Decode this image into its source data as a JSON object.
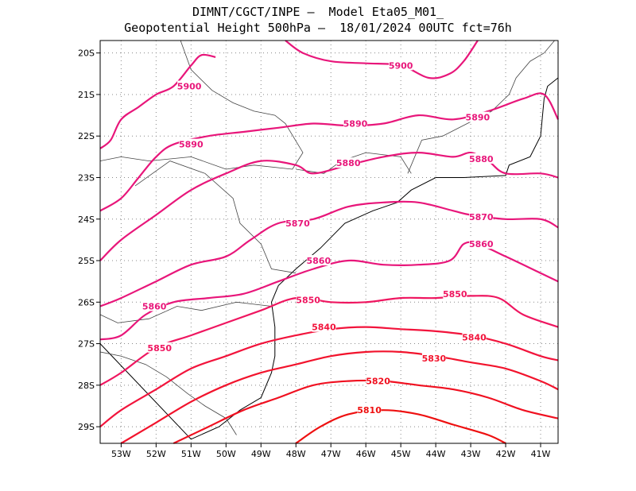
{
  "title": {
    "line1": "DIMNT/CGCT/INPE –  Model Eta05_M01_",
    "line2": "Geopotential Height 500hPa –  18/01/2024 00UTC fct=76h"
  },
  "map": {
    "lon_range": [
      -53.6,
      -40.5
    ],
    "lat_range": [
      -29.4,
      -19.7
    ],
    "lon_ticks": [
      {
        "v": -53,
        "label": "53W"
      },
      {
        "v": -52,
        "label": "52W"
      },
      {
        "v": -51,
        "label": "51W"
      },
      {
        "v": -50,
        "label": "50W"
      },
      {
        "v": -49,
        "label": "49W"
      },
      {
        "v": -48,
        "label": "48W"
      },
      {
        "v": -47,
        "label": "47W"
      },
      {
        "v": -46,
        "label": "46W"
      },
      {
        "v": -45,
        "label": "45W"
      },
      {
        "v": -44,
        "label": "44W"
      },
      {
        "v": -43,
        "label": "43W"
      },
      {
        "v": -42,
        "label": "42W"
      },
      {
        "v": -41,
        "label": "41W"
      }
    ],
    "lat_ticks": [
      {
        "v": -20,
        "label": "20S"
      },
      {
        "v": -21,
        "label": "21S"
      },
      {
        "v": -22,
        "label": "22S"
      },
      {
        "v": -23,
        "label": "23S"
      },
      {
        "v": -24,
        "label": "24S"
      },
      {
        "v": -25,
        "label": "25S"
      },
      {
        "v": -26,
        "label": "26S"
      },
      {
        "v": -27,
        "label": "27S"
      },
      {
        "v": -28,
        "label": "28S"
      },
      {
        "v": -29,
        "label": "29S"
      }
    ],
    "grid": "dotted",
    "contours": [
      {
        "value": 5900,
        "label": "5900",
        "color": "#e8167a",
        "points": [
          [
            -53.6,
            -22.3
          ],
          [
            -53.3,
            -22.1
          ],
          [
            -53.0,
            -21.6
          ],
          [
            -52.5,
            -21.3
          ],
          [
            -52.0,
            -21.0
          ],
          [
            -51.5,
            -20.8
          ],
          [
            -51.0,
            -20.3
          ],
          [
            -50.7,
            -20.05
          ],
          [
            -50.3,
            -20.1
          ]
        ],
        "labels": [
          {
            "lon": -51.05,
            "lat": -20.8,
            "text": "5900"
          }
        ]
      },
      {
        "value": 5900,
        "label": "5900",
        "color": "#e8167a",
        "points": [
          [
            -48.3,
            -19.7
          ],
          [
            -47.8,
            -20.0
          ],
          [
            -47.0,
            -20.2
          ],
          [
            -46.0,
            -20.25
          ],
          [
            -45.0,
            -20.3
          ],
          [
            -44.2,
            -20.6
          ],
          [
            -43.6,
            -20.5
          ],
          [
            -43.2,
            -20.2
          ],
          [
            -42.8,
            -19.7
          ]
        ],
        "labels": [
          {
            "lon": -45.0,
            "lat": -20.3,
            "text": "5900"
          }
        ]
      },
      {
        "value": 5890,
        "label": "5890",
        "color": "#e8167a",
        "points": [
          [
            -53.6,
            -23.8
          ],
          [
            -53.0,
            -23.5
          ],
          [
            -52.5,
            -23.0
          ],
          [
            -52.0,
            -22.5
          ],
          [
            -51.5,
            -22.2
          ],
          [
            -50.5,
            -22.0
          ],
          [
            -49.5,
            -21.9
          ],
          [
            -48.5,
            -21.8
          ],
          [
            -47.5,
            -21.7
          ],
          [
            -46.5,
            -21.75
          ],
          [
            -45.5,
            -21.7
          ],
          [
            -44.5,
            -21.5
          ],
          [
            -43.5,
            -21.6
          ],
          [
            -42.5,
            -21.4
          ],
          [
            -41.5,
            -21.1
          ],
          [
            -40.9,
            -21.0
          ],
          [
            -40.5,
            -21.6
          ]
        ],
        "labels": [
          {
            "lon": -51.0,
            "lat": -22.2,
            "text": "5890"
          },
          {
            "lon": -46.3,
            "lat": -21.7,
            "text": "5890"
          },
          {
            "lon": -42.8,
            "lat": -21.55,
            "text": "5890"
          }
        ]
      },
      {
        "value": 5880,
        "label": "5880",
        "color": "#e8167a",
        "points": [
          [
            -53.6,
            -25.0
          ],
          [
            -53.0,
            -24.5
          ],
          [
            -52.0,
            -23.9
          ],
          [
            -51.0,
            -23.3
          ],
          [
            -50.0,
            -22.9
          ],
          [
            -49.0,
            -22.6
          ],
          [
            -48.0,
            -22.7
          ],
          [
            -47.5,
            -22.9
          ],
          [
            -46.5,
            -22.7
          ],
          [
            -45.5,
            -22.5
          ],
          [
            -44.5,
            -22.4
          ],
          [
            -43.5,
            -22.5
          ],
          [
            -43.0,
            -22.4
          ],
          [
            -42.5,
            -22.6
          ],
          [
            -42.0,
            -22.9
          ],
          [
            -41.0,
            -22.9
          ],
          [
            -40.5,
            -23.0
          ]
        ],
        "labels": [
          {
            "lon": -46.5,
            "lat": -22.65,
            "text": "5880"
          },
          {
            "lon": -42.7,
            "lat": -22.55,
            "text": "5880"
          }
        ]
      },
      {
        "value": 5870,
        "label": "5870",
        "color": "#e8167a",
        "points": [
          [
            -53.6,
            -26.1
          ],
          [
            -53.0,
            -25.9
          ],
          [
            -52.0,
            -25.5
          ],
          [
            -51.0,
            -25.1
          ],
          [
            -50.0,
            -24.9
          ],
          [
            -49.3,
            -24.5
          ],
          [
            -48.5,
            -24.1
          ],
          [
            -47.5,
            -24.0
          ],
          [
            -46.5,
            -23.7
          ],
          [
            -45.5,
            -23.6
          ],
          [
            -44.5,
            -23.6
          ],
          [
            -43.5,
            -23.8
          ],
          [
            -43.0,
            -23.9
          ],
          [
            -42.0,
            -24.0
          ],
          [
            -41.0,
            -24.0
          ],
          [
            -40.5,
            -24.2
          ]
        ],
        "labels": [
          {
            "lon": -47.95,
            "lat": -24.1,
            "text": "5870"
          },
          {
            "lon": -42.7,
            "lat": -23.95,
            "text": "5870"
          }
        ]
      },
      {
        "value": 5860,
        "label": "5860",
        "color": "#e8167a",
        "points": [
          [
            -53.6,
            -26.9
          ],
          [
            -53.0,
            -26.8
          ],
          [
            -52.3,
            -26.3
          ],
          [
            -51.5,
            -26.0
          ],
          [
            -50.5,
            -25.9
          ],
          [
            -49.5,
            -25.8
          ],
          [
            -48.5,
            -25.5
          ],
          [
            -47.5,
            -25.2
          ],
          [
            -46.5,
            -25.0
          ],
          [
            -45.5,
            -25.1
          ],
          [
            -44.5,
            -25.1
          ],
          [
            -43.6,
            -25.0
          ],
          [
            -43.2,
            -24.6
          ],
          [
            -42.8,
            -24.6
          ],
          [
            -42.0,
            -24.9
          ],
          [
            -41.0,
            -25.3
          ],
          [
            -40.5,
            -25.5
          ]
        ],
        "labels": [
          {
            "lon": -52.05,
            "lat": -26.1,
            "text": "5860"
          },
          {
            "lon": -47.35,
            "lat": -25.0,
            "text": "5860"
          },
          {
            "lon": -42.7,
            "lat": -24.6,
            "text": "5860"
          }
        ]
      },
      {
        "value": 5850,
        "label": "5850",
        "color": "#ef1660",
        "points": [
          [
            -53.6,
            -28.0
          ],
          [
            -53.0,
            -27.7
          ],
          [
            -52.0,
            -27.1
          ],
          [
            -51.0,
            -26.8
          ],
          [
            -50.0,
            -26.5
          ],
          [
            -49.0,
            -26.2
          ],
          [
            -48.0,
            -25.9
          ],
          [
            -47.0,
            -26.0
          ],
          [
            -46.0,
            -26.0
          ],
          [
            -45.0,
            -25.9
          ],
          [
            -44.0,
            -25.9
          ],
          [
            -43.0,
            -25.85
          ],
          [
            -42.2,
            -25.9
          ],
          [
            -41.5,
            -26.3
          ],
          [
            -40.5,
            -26.6
          ]
        ],
        "labels": [
          {
            "lon": -51.9,
            "lat": -27.1,
            "text": "5850"
          },
          {
            "lon": -47.65,
            "lat": -25.95,
            "text": "5850"
          },
          {
            "lon": -43.45,
            "lat": -25.8,
            "text": "5850"
          }
        ]
      },
      {
        "value": 5840,
        "label": "5840",
        "color": "#f2143c",
        "points": [
          [
            -53.6,
            -29.0
          ],
          [
            -53.0,
            -28.6
          ],
          [
            -52.0,
            -28.1
          ],
          [
            -51.0,
            -27.6
          ],
          [
            -50.0,
            -27.3
          ],
          [
            -49.0,
            -27.0
          ],
          [
            -48.0,
            -26.8
          ],
          [
            -47.0,
            -26.65
          ],
          [
            -46.0,
            -26.6
          ],
          [
            -45.0,
            -26.65
          ],
          [
            -44.0,
            -26.7
          ],
          [
            -43.0,
            -26.8
          ],
          [
            -42.0,
            -27.0
          ],
          [
            -41.0,
            -27.3
          ],
          [
            -40.5,
            -27.4
          ]
        ],
        "labels": [
          {
            "lon": -47.2,
            "lat": -26.6,
            "text": "5840"
          },
          {
            "lon": -42.9,
            "lat": -26.85,
            "text": "5840"
          }
        ]
      },
      {
        "value": 5830,
        "label": "5830",
        "color": "#f2132c",
        "points": [
          [
            -53.0,
            -29.4
          ],
          [
            -52.0,
            -28.9
          ],
          [
            -51.0,
            -28.4
          ],
          [
            -50.0,
            -28.0
          ],
          [
            -49.0,
            -27.7
          ],
          [
            -48.0,
            -27.5
          ],
          [
            -47.0,
            -27.3
          ],
          [
            -46.0,
            -27.2
          ],
          [
            -45.0,
            -27.2
          ],
          [
            -44.0,
            -27.3
          ],
          [
            -43.0,
            -27.45
          ],
          [
            -42.0,
            -27.6
          ],
          [
            -41.0,
            -27.9
          ],
          [
            -40.5,
            -28.1
          ]
        ],
        "labels": [
          {
            "lon": -44.05,
            "lat": -27.35,
            "text": "5830"
          }
        ]
      },
      {
        "value": 5820,
        "label": "5820",
        "color": "#f01020",
        "points": [
          [
            -51.5,
            -29.4
          ],
          [
            -50.5,
            -29.0
          ],
          [
            -49.5,
            -28.6
          ],
          [
            -48.5,
            -28.3
          ],
          [
            -47.5,
            -28.0
          ],
          [
            -46.5,
            -27.9
          ],
          [
            -45.5,
            -27.9
          ],
          [
            -44.5,
            -28.0
          ],
          [
            -43.5,
            -28.1
          ],
          [
            -42.5,
            -28.3
          ],
          [
            -41.5,
            -28.6
          ],
          [
            -40.5,
            -28.8
          ]
        ],
        "labels": [
          {
            "lon": -45.65,
            "lat": -27.9,
            "text": "5820"
          }
        ]
      },
      {
        "value": 5810,
        "label": "5810",
        "color": "#ee1010",
        "points": [
          [
            -48.0,
            -29.4
          ],
          [
            -47.3,
            -29.0
          ],
          [
            -46.5,
            -28.7
          ],
          [
            -45.5,
            -28.6
          ],
          [
            -44.5,
            -28.7
          ],
          [
            -43.5,
            -28.95
          ],
          [
            -42.5,
            -29.2
          ],
          [
            -42.0,
            -29.4
          ]
        ],
        "labels": [
          {
            "lon": -45.9,
            "lat": -28.6,
            "text": "5810"
          }
        ]
      }
    ],
    "coastline": [
      [
        -53.6,
        -27.0
      ],
      [
        -51.0,
        -29.3
      ],
      [
        -50.2,
        -29.0
      ],
      [
        -49.6,
        -28.6
      ],
      [
        -49.0,
        -28.3
      ],
      [
        -48.7,
        -27.7
      ],
      [
        -48.6,
        -27.3
      ],
      [
        -48.6,
        -26.6
      ],
      [
        -48.7,
        -26.0
      ],
      [
        -48.5,
        -25.6
      ],
      [
        -48.0,
        -25.2
      ],
      [
        -47.3,
        -24.7
      ],
      [
        -46.6,
        -24.1
      ],
      [
        -45.8,
        -23.8
      ],
      [
        -45.1,
        -23.6
      ],
      [
        -44.7,
        -23.3
      ],
      [
        -44.0,
        -23.0
      ],
      [
        -43.2,
        -23.0
      ],
      [
        -42.0,
        -22.95
      ],
      [
        -41.9,
        -22.7
      ],
      [
        -41.3,
        -22.5
      ],
      [
        -41.0,
        -22.0
      ],
      [
        -40.9,
        -21.1
      ],
      [
        -40.8,
        -20.8
      ],
      [
        -40.5,
        -20.6
      ]
    ],
    "borders": [
      [
        [
          -51.3,
          -19.7
        ],
        [
          -51.0,
          -20.4
        ],
        [
          -50.4,
          -20.9
        ],
        [
          -49.8,
          -21.2
        ],
        [
          -49.2,
          -21.4
        ],
        [
          -48.6,
          -21.5
        ],
        [
          -48.3,
          -21.7
        ],
        [
          -47.8,
          -22.4
        ],
        [
          -48.1,
          -22.8
        ],
        [
          -49.2,
          -22.7
        ],
        [
          -50.0,
          -22.8
        ],
        [
          -51.0,
          -22.5
        ],
        [
          -52.2,
          -22.6
        ],
        [
          -53.0,
          -22.5
        ],
        [
          -53.6,
          -22.6
        ]
      ],
      [
        [
          -48.0,
          -22.8
        ],
        [
          -47.2,
          -22.9
        ],
        [
          -46.7,
          -22.6
        ],
        [
          -46.0,
          -22.4
        ],
        [
          -45.0,
          -22.5
        ],
        [
          -44.7,
          -22.9
        ]
      ],
      [
        [
          -52.6,
          -23.2
        ],
        [
          -51.6,
          -22.6
        ],
        [
          -50.6,
          -22.9
        ],
        [
          -49.8,
          -23.5
        ],
        [
          -49.6,
          -24.1
        ],
        [
          -49.0,
          -24.6
        ],
        [
          -48.7,
          -25.2
        ],
        [
          -48.0,
          -25.3
        ]
      ],
      [
        [
          -53.6,
          -26.3
        ],
        [
          -53.1,
          -26.5
        ],
        [
          -52.2,
          -26.4
        ],
        [
          -51.4,
          -26.1
        ],
        [
          -50.7,
          -26.2
        ],
        [
          -49.7,
          -26.0
        ],
        [
          -48.7,
          -26.1
        ]
      ],
      [
        [
          -53.6,
          -27.2
        ],
        [
          -53.0,
          -27.3
        ],
        [
          -52.3,
          -27.5
        ],
        [
          -51.7,
          -27.8
        ],
        [
          -51.1,
          -28.2
        ],
        [
          -50.6,
          -28.5
        ],
        [
          -50.0,
          -28.8
        ],
        [
          -49.7,
          -29.2
        ]
      ],
      [
        [
          -44.8,
          -22.9
        ],
        [
          -44.4,
          -22.1
        ],
        [
          -43.8,
          -22.0
        ],
        [
          -43.1,
          -21.7
        ],
        [
          -42.4,
          -21.4
        ],
        [
          -41.9,
          -21.0
        ],
        [
          -41.7,
          -20.6
        ],
        [
          -41.3,
          -20.2
        ],
        [
          -40.9,
          -20.0
        ],
        [
          -40.6,
          -19.7
        ]
      ]
    ]
  }
}
